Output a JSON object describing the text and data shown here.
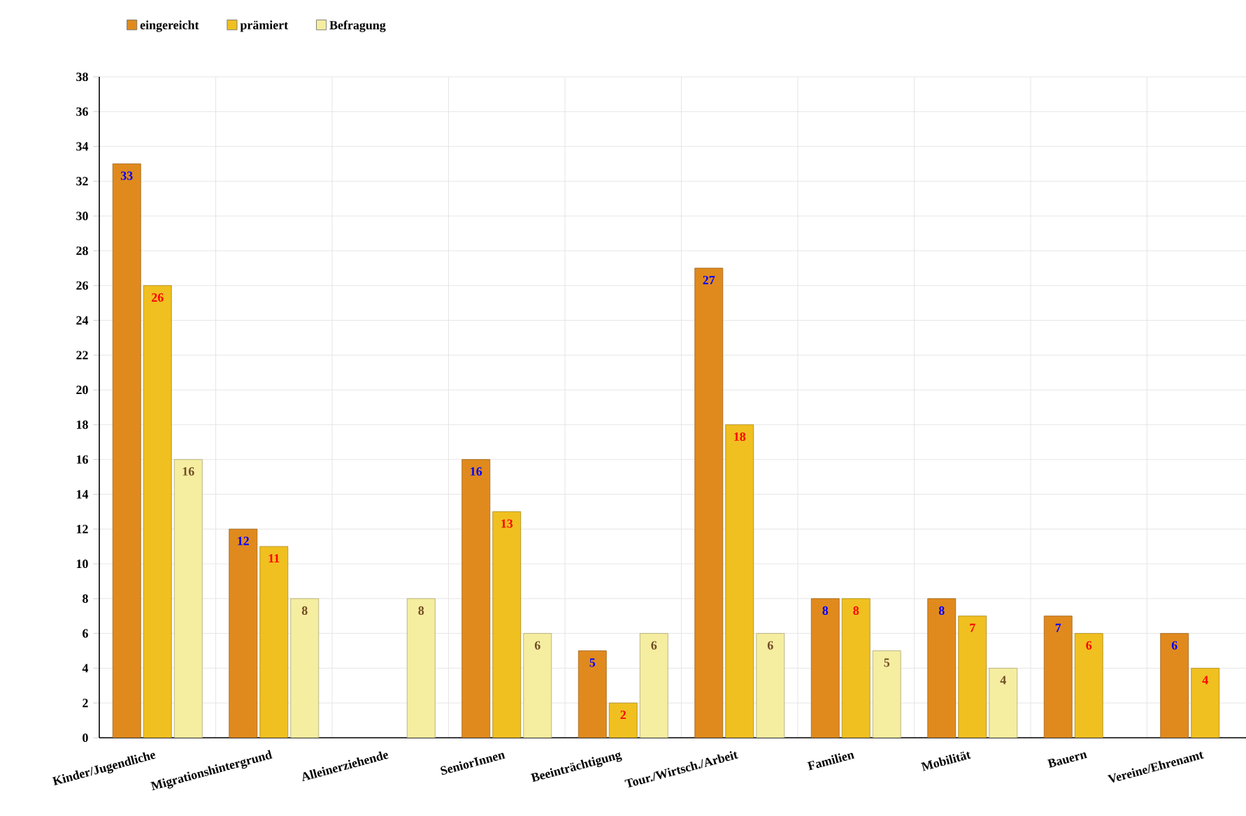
{
  "chart_data": {
    "type": "bar",
    "categories": [
      "Kinder/Jugendliche",
      "Migrationshintergrund",
      "Alleinerziehende",
      "SeniorInnen",
      "Beeinträchtigung",
      "Tour./Wirtsch./Arbeit",
      "Familien",
      "Mobilität",
      "Bauern",
      "Vereine/Ehrenamt"
    ],
    "series": [
      {
        "name": "eingereicht",
        "color": "#e08a1e",
        "values": [
          33,
          12,
          null,
          16,
          5,
          27,
          8,
          8,
          7,
          6
        ]
      },
      {
        "name": "prämiert",
        "color": "#f0c020",
        "values": [
          26,
          11,
          null,
          13,
          2,
          18,
          8,
          7,
          6,
          4
        ]
      },
      {
        "name": "Befragung",
        "color": "#f5eda0",
        "values": [
          16,
          8,
          8,
          6,
          6,
          6,
          5,
          4,
          null,
          null
        ]
      }
    ],
    "ylim": [
      0,
      38
    ],
    "yticks": [
      0,
      2,
      4,
      6,
      8,
      10,
      12,
      14,
      16,
      18,
      20,
      22,
      24,
      26,
      28,
      30,
      32,
      34,
      36,
      38
    ],
    "grid": true,
    "legend": "top left",
    "data_labels": true
  }
}
